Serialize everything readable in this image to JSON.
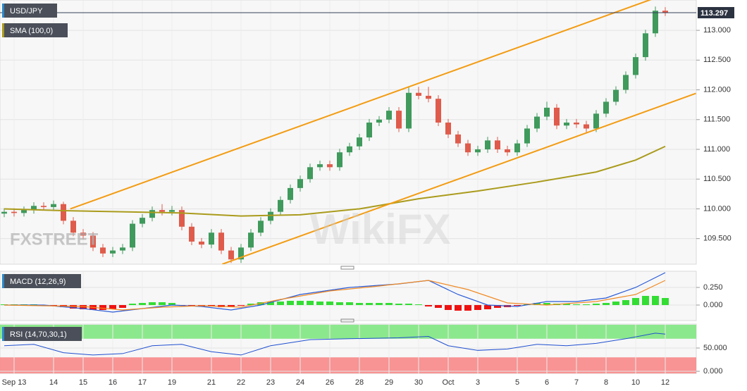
{
  "chart_data": [
    {
      "type": "candlestick",
      "title": "USD/JPY",
      "annotations": [
        "FXSTREET",
        "WikiFX"
      ],
      "categories": [
        null,
        "Sep 13",
        null,
        null,
        null,
        "14",
        null,
        null,
        "15",
        null,
        null,
        "16",
        null,
        null,
        "17",
        null,
        null,
        "19",
        null,
        null,
        null,
        "21",
        null,
        null,
        "22",
        null,
        null,
        "23",
        null,
        null,
        "24",
        null,
        null,
        "26",
        null,
        null,
        "28",
        null,
        null,
        "29",
        null,
        null,
        "30",
        null,
        null,
        "Oct",
        null,
        null,
        "3",
        null,
        null,
        null,
        "5",
        null,
        null,
        "6",
        null,
        null,
        "7",
        null,
        null,
        "8",
        null,
        null,
        "10",
        null,
        null,
        "12"
      ],
      "open": [
        109.92,
        109.95,
        109.93,
        109.98,
        110.05,
        110.03,
        110.08,
        109.8,
        109.6,
        109.55,
        109.35,
        109.25,
        109.3,
        109.35,
        109.75,
        109.85,
        109.98,
        109.95,
        109.98,
        109.7,
        109.45,
        109.4,
        109.6,
        109.3,
        109.15,
        109.35,
        109.6,
        109.8,
        109.95,
        110.15,
        110.35,
        110.5,
        110.7,
        110.75,
        110.7,
        110.95,
        111.05,
        111.2,
        111.45,
        111.5,
        111.65,
        111.35,
        111.95,
        111.9,
        111.85,
        111.45,
        111.25,
        111.1,
        110.95,
        111.0,
        111.15,
        111.0,
        110.95,
        111.1,
        111.35,
        111.55,
        111.7,
        111.4,
        111.45,
        111.42,
        111.35,
        111.6,
        111.8,
        112.0,
        112.25,
        112.55,
        112.95,
        113.33
      ],
      "high": [
        110.01,
        110.01,
        110.04,
        110.11,
        110.11,
        110.14,
        110.12,
        109.86,
        109.66,
        109.61,
        109.41,
        109.36,
        109.41,
        109.81,
        109.91,
        110.04,
        110.08,
        110.05,
        110.04,
        109.76,
        109.51,
        109.66,
        109.66,
        109.36,
        109.41,
        109.66,
        109.86,
        110.01,
        110.21,
        110.41,
        110.56,
        110.76,
        110.81,
        110.81,
        111.01,
        111.11,
        111.26,
        111.51,
        111.56,
        111.71,
        111.71,
        112.05,
        112.05,
        112.05,
        111.91,
        111.51,
        111.31,
        111.16,
        111.06,
        111.21,
        111.21,
        111.06,
        111.16,
        111.41,
        111.61,
        111.8,
        111.76,
        111.51,
        111.51,
        111.48,
        111.66,
        111.86,
        112.06,
        112.31,
        112.61,
        113.01,
        113.4,
        113.39
      ],
      "low": [
        109.86,
        109.87,
        109.87,
        109.92,
        109.97,
        109.97,
        109.74,
        109.54,
        109.49,
        109.29,
        109.19,
        109.19,
        109.24,
        109.29,
        109.69,
        109.79,
        109.89,
        109.89,
        109.64,
        109.39,
        109.34,
        109.34,
        109.24,
        109.09,
        109.09,
        109.29,
        109.54,
        109.74,
        109.89,
        110.09,
        110.29,
        110.44,
        110.64,
        110.64,
        110.64,
        110.89,
        110.99,
        111.14,
        111.39,
        111.44,
        111.29,
        111.29,
        111.84,
        111.79,
        111.39,
        111.19,
        111.04,
        110.89,
        110.89,
        110.94,
        110.94,
        110.89,
        110.89,
        111.04,
        111.29,
        111.49,
        111.34,
        111.34,
        111.36,
        111.29,
        111.29,
        111.54,
        111.74,
        111.94,
        112.19,
        112.49,
        112.89,
        113.24
      ],
      "close": [
        109.95,
        109.93,
        109.98,
        110.05,
        110.03,
        110.08,
        109.8,
        109.6,
        109.55,
        109.35,
        109.25,
        109.3,
        109.35,
        109.75,
        109.85,
        109.98,
        109.95,
        109.98,
        109.7,
        109.45,
        109.4,
        109.6,
        109.3,
        109.15,
        109.35,
        109.6,
        109.8,
        109.95,
        110.15,
        110.35,
        110.5,
        110.7,
        110.75,
        110.7,
        110.95,
        111.05,
        111.2,
        111.45,
        111.5,
        111.65,
        111.35,
        111.95,
        111.9,
        111.85,
        111.45,
        111.25,
        111.1,
        110.95,
        111.0,
        111.15,
        111.0,
        110.95,
        111.1,
        111.35,
        111.55,
        111.7,
        111.4,
        111.45,
        111.42,
        111.35,
        111.6,
        111.8,
        112.0,
        112.25,
        112.55,
        112.95,
        113.33,
        113.297
      ],
      "up_color": "#3f9a5c",
      "down_color": "#df5b4b",
      "series": [
        {
          "name": "SMA (100,0)",
          "color": "#aa9b1c",
          "x": [
            0,
            6,
            12,
            18,
            24,
            30,
            36,
            42,
            48,
            54,
            60,
            64,
            67
          ],
          "values": [
            110.0,
            109.97,
            109.95,
            109.93,
            109.88,
            109.9,
            110.0,
            110.17,
            110.3,
            110.45,
            110.62,
            110.82,
            111.05
          ]
        }
      ],
      "trendlines": [
        {
          "color": "#f39c12",
          "x": [
            6.7,
            70.1
          ],
          "values": [
            110.0,
            113.79
          ]
        },
        {
          "color": "#f39c12",
          "x": [
            22.1,
            70.1
          ],
          "values": [
            109.07,
            111.94
          ]
        }
      ],
      "last_price": 113.297,
      "ylim": [
        109.07,
        113.51
      ],
      "yticks": [
        {
          "value": 109.5,
          "label": "109.500"
        },
        {
          "value": 110,
          "label": "110.000"
        },
        {
          "value": 110.5,
          "label": "110.500"
        },
        {
          "value": 111,
          "label": "111.000"
        },
        {
          "value": 111.5,
          "label": "111.500"
        },
        {
          "value": 112,
          "label": "112.000"
        },
        {
          "value": 112.5,
          "label": "112.500"
        },
        {
          "value": 113,
          "label": "113.000"
        }
      ],
      "grid": true
    },
    {
      "type": "macd",
      "title": "MACD (12,26,9)",
      "histogram": {
        "values": [
          0.01,
          0.01,
          0.01,
          0.01,
          0.0,
          -0.01,
          -0.03,
          -0.05,
          -0.06,
          -0.07,
          -0.07,
          -0.06,
          -0.04,
          0.02,
          0.03,
          0.04,
          0.04,
          0.03,
          -0.01,
          -0.02,
          -0.02,
          -0.02,
          -0.03,
          -0.03,
          -0.01,
          0.02,
          0.04,
          0.05,
          0.05,
          0.06,
          0.06,
          0.06,
          0.05,
          0.05,
          0.04,
          0.04,
          0.03,
          0.03,
          0.03,
          0.03,
          0.02,
          0.02,
          0.01,
          -0.02,
          -0.04,
          -0.07,
          -0.08,
          -0.08,
          -0.07,
          -0.06,
          -0.04,
          -0.03,
          -0.01,
          0.01,
          0.03,
          0.03,
          0.02,
          0.02,
          0.01,
          0.01,
          0.02,
          0.03,
          0.05,
          0.07,
          0.1,
          0.13,
          0.13,
          0.1
        ],
        "colors": [
          "#33dd33",
          "#ee1111"
        ]
      },
      "series": [
        {
          "color": "#2a5bd7",
          "x": [
            0,
            4,
            8,
            11,
            14,
            17,
            20,
            23,
            26,
            30,
            35,
            40,
            43,
            46,
            49,
            52,
            55,
            58,
            61,
            64,
            67
          ],
          "values": [
            0.0,
            0.0,
            -0.05,
            -0.1,
            -0.05,
            0.0,
            -0.02,
            -0.07,
            0.0,
            0.15,
            0.25,
            0.3,
            0.35,
            0.15,
            0.0,
            -0.02,
            0.05,
            0.05,
            0.1,
            0.25,
            0.46
          ]
        },
        {
          "color": "#f08a24",
          "x": [
            0,
            8,
            12,
            16,
            20,
            24,
            28,
            33,
            38,
            43,
            47,
            51,
            55,
            60,
            64,
            67
          ],
          "values": [
            0.0,
            -0.02,
            -0.07,
            -0.03,
            -0.01,
            -0.03,
            0.08,
            0.2,
            0.27,
            0.35,
            0.22,
            0.03,
            0.0,
            0.05,
            0.15,
            0.35
          ]
        }
      ],
      "ylim": [
        -0.22,
        0.48
      ],
      "yticks": [
        {
          "value": 0,
          "label": "0.000"
        },
        {
          "value": 0.25,
          "label": "0.250"
        }
      ],
      "grid": true
    },
    {
      "type": "line",
      "title": "RSI (14,70,30,1)",
      "bands": [
        {
          "from": 70,
          "to": 100,
          "color": "#7fe57f"
        },
        {
          "from": -4.5,
          "to": 30,
          "color": "#f78888"
        }
      ],
      "series": [
        {
          "color": "#2050d0",
          "x": [
            0,
            3,
            6,
            9,
            12,
            15,
            18,
            21,
            24,
            27,
            31,
            35,
            40,
            43,
            45,
            48,
            51,
            54,
            57,
            60,
            63,
            66,
            67
          ],
          "values": [
            55,
            58,
            40,
            35,
            38,
            55,
            58,
            42,
            35,
            55,
            68,
            70,
            72,
            75,
            55,
            45,
            48,
            58,
            55,
            60,
            70,
            82,
            80
          ]
        }
      ],
      "ylim": [
        -4.5,
        101.5
      ],
      "yticks": [
        {
          "value": 0,
          "label": "0.000"
        },
        {
          "value": 50,
          "label": "50.000"
        }
      ],
      "grid": true
    }
  ]
}
